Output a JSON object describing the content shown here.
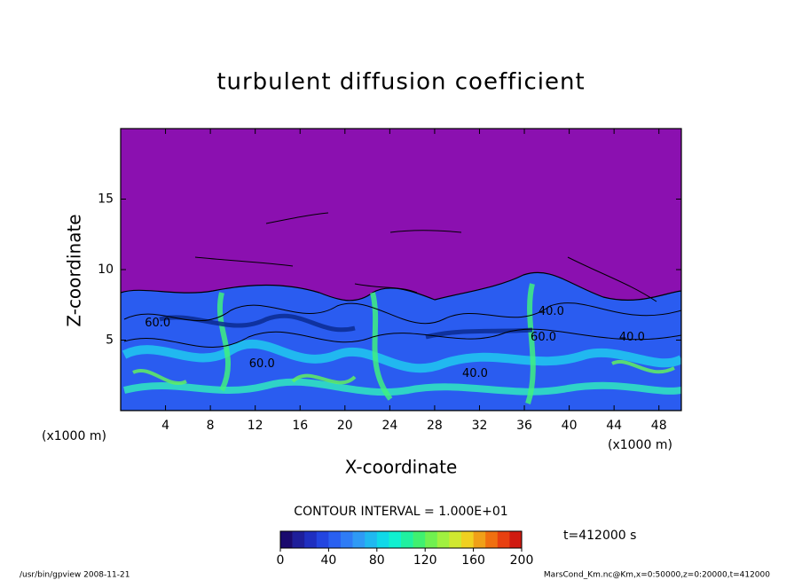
{
  "chart_data": {
    "type": "contour",
    "title": "turbulent diffusion coefficient",
    "xlabel": "X-coordinate",
    "ylabel": "Z-coordinate",
    "x_unit": "(x1000 m)",
    "xlim": [
      0,
      50
    ],
    "ylim": [
      0,
      20
    ],
    "xticks": [
      4,
      8,
      12,
      16,
      20,
      24,
      28,
      32,
      36,
      40,
      44,
      48
    ],
    "yticks": [
      5,
      10,
      15
    ],
    "background_color": "#8b10b0",
    "contour_labels": [
      {
        "value": 60,
        "label": "60.0",
        "x": 3.3,
        "z": 6.2
      },
      {
        "value": 60,
        "label": "60.0",
        "x": 12.6,
        "z": 3.3
      },
      {
        "value": 40,
        "label": "40.0",
        "x": 31.6,
        "z": 2.6
      },
      {
        "value": 60,
        "label": "60.0",
        "x": 37.7,
        "z": 5.2
      },
      {
        "value": 40,
        "label": "40.0",
        "x": 38.4,
        "z": 7.0
      },
      {
        "value": 40,
        "label": "40.0",
        "x": 45.6,
        "z": 5.2
      }
    ],
    "contour_interval": "CONTOUR INTERVAL = 1.000E+01",
    "time_label": "t=412000 s",
    "colorbar": {
      "lim": [
        0,
        200
      ],
      "ticks": [
        0,
        40,
        80,
        120,
        160,
        200
      ],
      "colors": [
        "#1a0a6e",
        "#1e1e9a",
        "#1f2fc0",
        "#2345e0",
        "#2a60f0",
        "#2f7cf5",
        "#2f9af5",
        "#20b8f0",
        "#10d8e8",
        "#10f0d0",
        "#20f0a0",
        "#40f070",
        "#70f050",
        "#a0f040",
        "#d0e830",
        "#f0d020",
        "#f0a018",
        "#f07010",
        "#e84010",
        "#d01a10"
      ]
    },
    "footer_left": "/usr/bin/gpview   2008-11-21",
    "footer_right": "MarsCond_Km.nc@Km,x=0:50000,z=0:20000,t=412000"
  }
}
